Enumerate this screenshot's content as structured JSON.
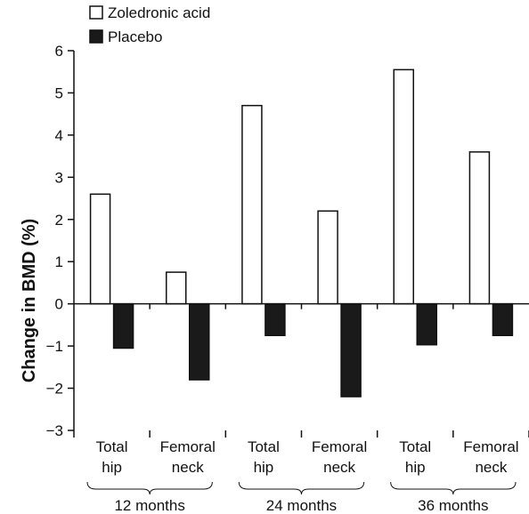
{
  "chart_data": {
    "type": "bar",
    "ylabel": "Change in BMD (%)",
    "ylim": [
      -3,
      6
    ],
    "yticks": [
      "6",
      "5",
      "4",
      "3",
      "2",
      "1",
      "0",
      "-1",
      "-2",
      "-3"
    ],
    "ytick_values": [
      6,
      5,
      4,
      3,
      2,
      1,
      0,
      -1,
      -2,
      -3
    ],
    "categories": [
      {
        "line1": "Total",
        "line2": "hip"
      },
      {
        "line1": "Femoral",
        "line2": "neck"
      },
      {
        "line1": "Total",
        "line2": "hip"
      },
      {
        "line1": "Femoral",
        "line2": "neck"
      },
      {
        "line1": "Total",
        "line2": "hip"
      },
      {
        "line1": "Femoral",
        "line2": "neck"
      }
    ],
    "groups": [
      "12 months",
      "24 months",
      "36 months"
    ],
    "series": [
      {
        "name": "Zoledronic acid",
        "color": "#ffffff",
        "values": [
          2.6,
          0.75,
          4.7,
          2.2,
          5.55,
          3.6
        ]
      },
      {
        "name": "Placebo",
        "color": "#1a1a1a",
        "values": [
          -1.05,
          -1.8,
          -0.75,
          -2.2,
          -0.97,
          -0.75
        ]
      }
    ],
    "legend_position": "top-left",
    "grid": false
  }
}
